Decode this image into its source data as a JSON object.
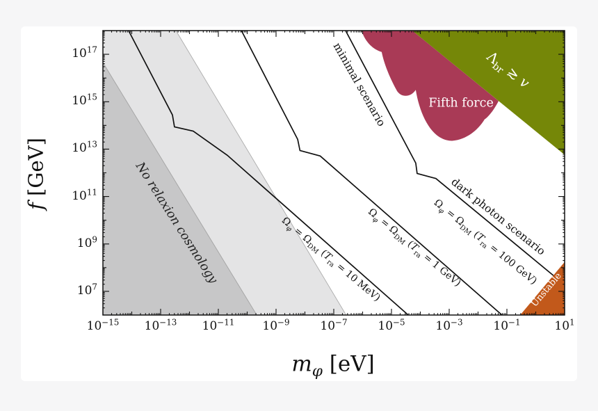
{
  "page": {
    "background_color": "#f6f6f7",
    "card_background_color": "#ffffff",
    "description": "Relaxion parameter-space plot: axion decay constant f versus relaxion mass m_phi with cosmological and experimental regions"
  },
  "chart_data": {
    "type": "line",
    "title": "",
    "xlabel": "*m*_{*φ*} [eV]",
    "ylabel": "*f* [GeV]",
    "frame_color": "#111111",
    "legend": "none",
    "grid": "off",
    "x_axis": {
      "scale": "log",
      "unit": "eV",
      "min_exponent": -15,
      "max_exponent": 1,
      "labeled_tick_exponents": [
        -15,
        -13,
        -11,
        -9,
        -7,
        -5,
        -3,
        -1,
        1
      ]
    },
    "y_axis": {
      "scale": "log",
      "unit": "GeV",
      "min_exponent": 6,
      "max_exponent": 18,
      "labeled_tick_exponents": [
        7,
        9,
        11,
        13,
        15,
        17
      ]
    },
    "series": [
      {
        "name": "omega-dm-contour-Tra-10MeV",
        "color": "#111111",
        "width": 1.7,
        "points_log": [
          [
            -14.11,
            18
          ],
          [
            -12.59,
            14.44
          ],
          [
            -12.52,
            13.94
          ],
          [
            -11.87,
            13.76
          ],
          [
            -10.69,
            12.74
          ],
          [
            -4.42,
            6
          ]
        ]
      },
      {
        "name": "omega-dm-contour-Tra-1GeV",
        "color": "#111111",
        "width": 1.7,
        "points_log": [
          [
            -10.2,
            18
          ],
          [
            -8.25,
            13.41
          ],
          [
            -8.17,
            12.94
          ],
          [
            -7.47,
            12.71
          ],
          [
            -1.17,
            6
          ]
        ]
      },
      {
        "name": "omega-dm-contour-Tra-100GeV-minimal-dark-photon",
        "color": "#111111",
        "width": 1.7,
        "points_log": [
          [
            -6.59,
            18
          ],
          [
            -4.16,
            12.41
          ],
          [
            -4.11,
            11.97
          ],
          [
            -3.46,
            11.76
          ],
          [
            0.61,
            7.67
          ]
        ]
      }
    ],
    "regions": [
      {
        "name": "no-relaxion-cosmology-outer-band",
        "color": "#e4e4e5",
        "border_color": "#ababab",
        "points_log": [
          [
            -15,
            18
          ],
          [
            -12.47,
            18
          ],
          [
            -6.57,
            6
          ],
          [
            -9.67,
            6
          ],
          [
            -15,
            16.65
          ]
        ]
      },
      {
        "name": "no-relaxion-cosmology-core",
        "color": "#c7c7c8",
        "border_color": "#a6a6a6",
        "points_log": [
          [
            -15,
            16.65
          ],
          [
            -9.67,
            6
          ],
          [
            -15,
            6
          ]
        ]
      },
      {
        "name": "fifth-force",
        "color": "#a93a56",
        "path_log": [
          [
            "M",
            -6.04,
            18
          ],
          [
            "C",
            -5.9,
            17.5,
            -5.63,
            17.2,
            -5.34,
            17.1
          ],
          [
            "C",
            -5.25,
            16.55,
            -5.03,
            15.95,
            -4.83,
            15.5
          ],
          [
            "C",
            -4.7,
            15.18,
            -4.35,
            15.15,
            -4.16,
            15.5
          ],
          [
            "C",
            -4.02,
            14.45,
            -3.6,
            13.35,
            -2.9,
            13.35
          ],
          [
            "C",
            -2.4,
            13.4,
            -2.0,
            13.8,
            -1.77,
            14.26
          ],
          [
            "C",
            -1.62,
            14.38,
            -1.43,
            14.7,
            -1.29,
            15.03
          ],
          [
            "L",
            -4.28,
            18
          ],
          [
            "Z"
          ]
        ]
      },
      {
        "name": "lambda-br-greater-than-v",
        "color": "#758708",
        "points_log": [
          [
            -4.28,
            18
          ],
          [
            1,
            18
          ],
          [
            1,
            12.76
          ]
        ]
      },
      {
        "name": "unstable",
        "color": "#c2591b",
        "points_log": [
          [
            -0.54,
            6
          ],
          [
            1,
            6
          ],
          [
            1,
            8.24
          ]
        ]
      }
    ],
    "annotations": {
      "no_relaxion": {
        "text": "No relaxion cosmology",
        "color": "#1f1f1f"
      },
      "minimal": {
        "text": "minimal scenario",
        "color": "#111111"
      },
      "dark_photon": {
        "text": "dark photon scenario",
        "color": "#111111"
      },
      "omega_10mev": {
        "text": "Ω_{*φ*} = Ω_{DM} (*T*_{ra} = 10 MeV)",
        "color": "#111111"
      },
      "omega_1gev": {
        "text": "Ω_{*φ*} = Ω_{DM} (*T*_{ra} = 1 GeV)",
        "color": "#111111"
      },
      "omega_100gev": {
        "text": "Ω_{*φ*} = Ω_{DM} (*T*_{ra} = 100 GeV)",
        "color": "#111111"
      },
      "fifth_force": {
        "text": "Fifth force",
        "color": "#ffffff"
      },
      "lambda_br": {
        "text": "Λ_{br} ≳ *v*",
        "color": "#ffffff"
      },
      "unstable": {
        "text": "Unstable",
        "color": "#ffffff"
      }
    }
  }
}
